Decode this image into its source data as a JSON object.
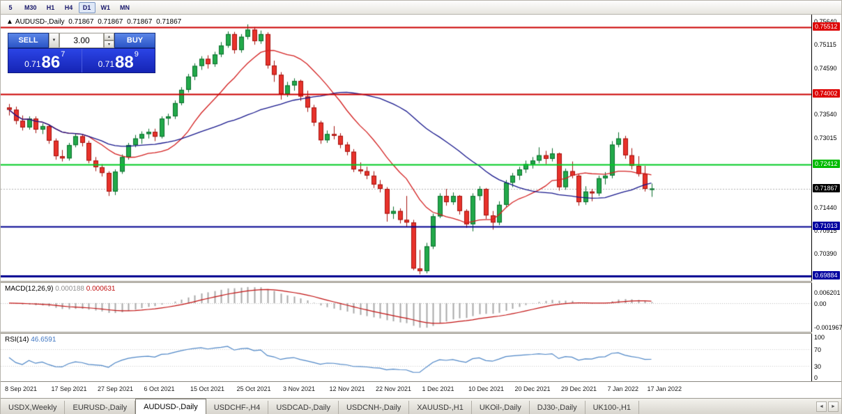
{
  "icons": {
    "marker": "▲",
    "dropdown": "▼",
    "spin_up": "▲",
    "spin_down": "▼",
    "nav_left": "◄",
    "nav_right": "►"
  },
  "toolbar": {
    "timeframes": [
      "5",
      "M30",
      "H1",
      "H4",
      "D1",
      "W1",
      "MN"
    ],
    "active": "D1"
  },
  "chart_header": {
    "marker": "▲",
    "symbol": "AUDUSD-,Daily",
    "open": "0.71867",
    "high": "0.71867",
    "low": "0.71867",
    "close": "0.71867"
  },
  "trade_panel": {
    "sell_label": "SELL",
    "buy_label": "BUY",
    "volume": "3.00",
    "sell_price": {
      "prefix": "0.71",
      "big": "86",
      "sup": "7"
    },
    "buy_price": {
      "prefix": "0.71",
      "big": "88",
      "sup": "9"
    }
  },
  "price_axis": {
    "ticks": [
      {
        "v": 0.7564,
        "label": "0.75640"
      },
      {
        "v": 0.75115,
        "label": "0.75115"
      },
      {
        "v": 0.7459,
        "label": "0.74590"
      },
      {
        "v": 0.7354,
        "label": "0.73540"
      },
      {
        "v": 0.73015,
        "label": "0.73015"
      },
      {
        "v": 0.7144,
        "label": "0.71440"
      },
      {
        "v": 0.70915,
        "label": "0.70915"
      },
      {
        "v": 0.7039,
        "label": "0.70390"
      }
    ],
    "badges": [
      {
        "label": "0.75512",
        "price": 0.75512,
        "bg": "#dd0000",
        "fg": "#ffffff"
      },
      {
        "label": "0.74002",
        "price": 0.74002,
        "bg": "#dd0000",
        "fg": "#ffffff"
      },
      {
        "label": "0.72412",
        "price": 0.72412,
        "bg": "#00bb00",
        "fg": "#ffffff"
      },
      {
        "label": "0.71867",
        "price": 0.71867,
        "bg": "#000000",
        "fg": "#ffffff"
      },
      {
        "label": "0.71013",
        "price": 0.71013,
        "bg": "#0000a0",
        "fg": "#ffffff"
      },
      {
        "label": "0.69884",
        "price": 0.69884,
        "bg": "#0000a0",
        "fg": "#ffffff"
      }
    ]
  },
  "levels": [
    {
      "price": 0.75512,
      "color": "#cc0000",
      "width": 2
    },
    {
      "price": 0.74002,
      "color": "#cc0000",
      "width": 2
    },
    {
      "price": 0.72412,
      "color": "#00cc22",
      "width": 2
    },
    {
      "price": 0.71013,
      "color": "#000090",
      "width": 2
    },
    {
      "price": 0.69884,
      "color": "#000090",
      "width": 3
    }
  ],
  "macd_panel": {
    "label": "MACD(12,26,9)",
    "value_main": "0.000188",
    "value_signal": "0.000631",
    "axis_labels": [
      "0.006201",
      "0.00",
      "-0.001967"
    ],
    "params": [
      12,
      26,
      9
    ],
    "histogram_color": "#a8a8a8",
    "signal_color": "#c21111"
  },
  "rsi_panel": {
    "label": "RSI(14)",
    "value": "46.6591",
    "axis_labels": [
      "100",
      "70",
      "30",
      "0"
    ],
    "period": 14,
    "line_color": "#4f87c7"
  },
  "bottom_tabs": {
    "tabs": [
      {
        "label": "USDX,Weekly"
      },
      {
        "label": "EURUSD-,Daily"
      },
      {
        "label": "AUDUSD-,Daily",
        "active": true
      },
      {
        "label": "USDCHF-,H4"
      },
      {
        "label": "USDCAD-,Daily"
      },
      {
        "label": "USDCNH-,Daily"
      },
      {
        "label": "XAUUSD-,H1"
      },
      {
        "label": "UKOil-,Daily"
      },
      {
        "label": "DJ30-,Daily"
      },
      {
        "label": "UK100-,H1"
      }
    ]
  },
  "chart_data": {
    "type": "candlestick",
    "symbol": "AUDUSD",
    "timeframe": "Daily",
    "ylim": [
      0.6978,
      0.758
    ],
    "ma_fast_color": "#d42020",
    "ma_slow_color": "#16168c",
    "bull_color": "#22a94a",
    "bear_color": "#e8322b",
    "date_labels": [
      {
        "idx": 0,
        "label": "8 Sep 2021"
      },
      {
        "idx": 7,
        "label": "17 Sep 2021"
      },
      {
        "idx": 14,
        "label": "27 Sep 2021"
      },
      {
        "idx": 21,
        "label": "6 Oct 2021"
      },
      {
        "idx": 28,
        "label": "15 Oct 2021"
      },
      {
        "idx": 35,
        "label": "25 Oct 2021"
      },
      {
        "idx": 42,
        "label": "3 Nov 2021"
      },
      {
        "idx": 49,
        "label": "12 Nov 2021"
      },
      {
        "idx": 56,
        "label": "22 Nov 2021"
      },
      {
        "idx": 63,
        "label": "1 Dec 2021"
      },
      {
        "idx": 70,
        "label": "10 Dec 2021"
      },
      {
        "idx": 77,
        "label": "20 Dec 2021"
      },
      {
        "idx": 84,
        "label": "29 Dec 2021"
      },
      {
        "idx": 91,
        "label": "7 Jan 2022"
      },
      {
        "idx": 97,
        "label": "17 Jan 2022"
      }
    ],
    "candles": [
      [
        0.737,
        0.7378,
        0.7352,
        0.7365
      ],
      [
        0.7365,
        0.7372,
        0.7332,
        0.734
      ],
      [
        0.734,
        0.7352,
        0.7318,
        0.7325
      ],
      [
        0.7325,
        0.735,
        0.732,
        0.7345
      ],
      [
        0.7345,
        0.735,
        0.7312,
        0.732
      ],
      [
        0.732,
        0.7334,
        0.731,
        0.7328
      ],
      [
        0.7328,
        0.7332,
        0.7288,
        0.7295
      ],
      [
        0.7295,
        0.73,
        0.7252,
        0.726
      ],
      [
        0.726,
        0.7274,
        0.7248,
        0.7255
      ],
      [
        0.7255,
        0.729,
        0.725,
        0.7285
      ],
      [
        0.7285,
        0.7312,
        0.728,
        0.7305
      ],
      [
        0.7305,
        0.731,
        0.7282,
        0.729
      ],
      [
        0.729,
        0.7295,
        0.7244,
        0.725
      ],
      [
        0.725,
        0.7258,
        0.7226,
        0.7235
      ],
      [
        0.7235,
        0.7242,
        0.7214,
        0.7222
      ],
      [
        0.7222,
        0.7226,
        0.717,
        0.718
      ],
      [
        0.718,
        0.723,
        0.7172,
        0.7225
      ],
      [
        0.7225,
        0.7264,
        0.722,
        0.7258
      ],
      [
        0.7258,
        0.729,
        0.7252,
        0.7285
      ],
      [
        0.7285,
        0.7308,
        0.728,
        0.73
      ],
      [
        0.73,
        0.7316,
        0.7288,
        0.731
      ],
      [
        0.731,
        0.7322,
        0.73,
        0.7315
      ],
      [
        0.7315,
        0.7322,
        0.7294,
        0.7304
      ],
      [
        0.7304,
        0.735,
        0.73,
        0.7345
      ],
      [
        0.7345,
        0.7356,
        0.733,
        0.735
      ],
      [
        0.735,
        0.7386,
        0.7344,
        0.738
      ],
      [
        0.738,
        0.7416,
        0.7375,
        0.741
      ],
      [
        0.741,
        0.7446,
        0.7404,
        0.744
      ],
      [
        0.744,
        0.747,
        0.7432,
        0.7464
      ],
      [
        0.7464,
        0.7486,
        0.7455,
        0.748
      ],
      [
        0.748,
        0.7488,
        0.7458,
        0.7468
      ],
      [
        0.7468,
        0.7496,
        0.7462,
        0.749
      ],
      [
        0.749,
        0.7518,
        0.7484,
        0.751
      ],
      [
        0.751,
        0.7542,
        0.7505,
        0.7536
      ],
      [
        0.7536,
        0.7541,
        0.7492,
        0.75
      ],
      [
        0.75,
        0.7536,
        0.7494,
        0.753
      ],
      [
        0.753,
        0.7558,
        0.7524,
        0.7546
      ],
      [
        0.7546,
        0.7552,
        0.7512,
        0.752
      ],
      [
        0.752,
        0.7544,
        0.7514,
        0.7536
      ],
      [
        0.7536,
        0.754,
        0.7458,
        0.7465
      ],
      [
        0.7465,
        0.7476,
        0.7428,
        0.7444
      ],
      [
        0.7444,
        0.745,
        0.7388,
        0.74
      ],
      [
        0.74,
        0.7428,
        0.7394,
        0.742
      ],
      [
        0.742,
        0.7436,
        0.7408,
        0.743
      ],
      [
        0.743,
        0.7433,
        0.7385,
        0.7395
      ],
      [
        0.7395,
        0.7408,
        0.736,
        0.737
      ],
      [
        0.737,
        0.7376,
        0.7328,
        0.7336
      ],
      [
        0.7336,
        0.734,
        0.7288,
        0.7296
      ],
      [
        0.7296,
        0.7318,
        0.729,
        0.731
      ],
      [
        0.731,
        0.7328,
        0.7298,
        0.7306
      ],
      [
        0.7306,
        0.7312,
        0.7278,
        0.7286
      ],
      [
        0.7286,
        0.7292,
        0.7262,
        0.727
      ],
      [
        0.727,
        0.7276,
        0.7224,
        0.723
      ],
      [
        0.723,
        0.7246,
        0.722,
        0.7226
      ],
      [
        0.7226,
        0.7236,
        0.7208,
        0.7216
      ],
      [
        0.7216,
        0.7226,
        0.7188,
        0.7196
      ],
      [
        0.7196,
        0.7206,
        0.7178,
        0.7186
      ],
      [
        0.7186,
        0.719,
        0.7112,
        0.713
      ],
      [
        0.713,
        0.7146,
        0.7118,
        0.7136
      ],
      [
        0.7136,
        0.7142,
        0.7108,
        0.7116
      ],
      [
        0.7116,
        0.717,
        0.71,
        0.711
      ],
      [
        0.711,
        0.7116,
        0.7002,
        0.7006
      ],
      [
        0.7006,
        0.7048,
        0.6993,
        0.7
      ],
      [
        0.7,
        0.7064,
        0.6995,
        0.7056
      ],
      [
        0.7056,
        0.713,
        0.705,
        0.7124
      ],
      [
        0.7124,
        0.7176,
        0.712,
        0.717
      ],
      [
        0.717,
        0.7186,
        0.7148,
        0.7156
      ],
      [
        0.7156,
        0.7178,
        0.715,
        0.717
      ],
      [
        0.717,
        0.7172,
        0.7128,
        0.7136
      ],
      [
        0.7136,
        0.714,
        0.7098,
        0.7106
      ],
      [
        0.7106,
        0.7176,
        0.709,
        0.717
      ],
      [
        0.717,
        0.7192,
        0.716,
        0.7186
      ],
      [
        0.7186,
        0.7188,
        0.7118,
        0.7126
      ],
      [
        0.7126,
        0.7136,
        0.7094,
        0.711
      ],
      [
        0.711,
        0.7158,
        0.7104,
        0.715
      ],
      [
        0.715,
        0.7206,
        0.7145,
        0.72
      ],
      [
        0.72,
        0.7222,
        0.719,
        0.7216
      ],
      [
        0.7216,
        0.7236,
        0.7206,
        0.723
      ],
      [
        0.723,
        0.725,
        0.7222,
        0.7242
      ],
      [
        0.7242,
        0.7258,
        0.7232,
        0.725
      ],
      [
        0.725,
        0.728,
        0.7244,
        0.7262
      ],
      [
        0.7262,
        0.7272,
        0.7242,
        0.7254
      ],
      [
        0.7254,
        0.7278,
        0.7248,
        0.7266
      ],
      [
        0.7266,
        0.7268,
        0.7182,
        0.719
      ],
      [
        0.719,
        0.7232,
        0.7184,
        0.7226
      ],
      [
        0.7226,
        0.7248,
        0.721,
        0.7216
      ],
      [
        0.7216,
        0.722,
        0.7148,
        0.7156
      ],
      [
        0.7156,
        0.7192,
        0.715,
        0.718
      ],
      [
        0.718,
        0.7186,
        0.7158,
        0.7176
      ],
      [
        0.7176,
        0.7216,
        0.717,
        0.721
      ],
      [
        0.721,
        0.7224,
        0.7196,
        0.7216
      ],
      [
        0.7216,
        0.7294,
        0.721,
        0.7286
      ],
      [
        0.7286,
        0.7314,
        0.728,
        0.73
      ],
      [
        0.73,
        0.7306,
        0.7254,
        0.7262
      ],
      [
        0.7262,
        0.7278,
        0.723,
        0.7238
      ],
      [
        0.7238,
        0.726,
        0.7214,
        0.722
      ],
      [
        0.722,
        0.7238,
        0.718,
        0.7186
      ],
      [
        0.7186,
        0.7198,
        0.7168,
        0.71867
      ]
    ]
  }
}
